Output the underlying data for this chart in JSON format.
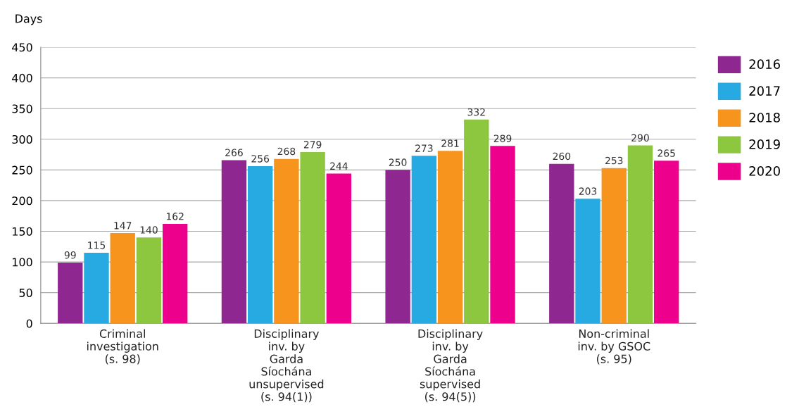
{
  "chart_data": {
    "type": "bar",
    "ylabel": "Days",
    "categories": [
      "Criminal\ninvestigation\n(s. 98)",
      "Disciplinary\ninv. by\nGarda\nSíochána\nunsupervised\n(s. 94(1))",
      "Disciplinary\ninv. by\nGarda\nSíochána\nsupervised\n(s. 94(5))",
      "Non-criminal\ninv. by GSOC\n(s. 95)"
    ],
    "series": [
      {
        "name": "2016",
        "color": "#8e278f",
        "values": [
          99,
          266,
          250,
          260
        ]
      },
      {
        "name": "2017",
        "color": "#27a9e1",
        "values": [
          115,
          256,
          273,
          203
        ]
      },
      {
        "name": "2018",
        "color": "#f7941d",
        "values": [
          147,
          268,
          281,
          253
        ]
      },
      {
        "name": "2019",
        "color": "#8dc63f",
        "values": [
          140,
          279,
          332,
          290
        ]
      },
      {
        "name": "2020",
        "color": "#ec008c",
        "values": [
          162,
          244,
          289,
          265
        ]
      }
    ],
    "ylim": [
      0,
      450
    ],
    "yticks": [
      0,
      50,
      100,
      150,
      200,
      250,
      300,
      350,
      400,
      450
    ],
    "grid": "y",
    "legend": "top right",
    "data_labels": true
  }
}
